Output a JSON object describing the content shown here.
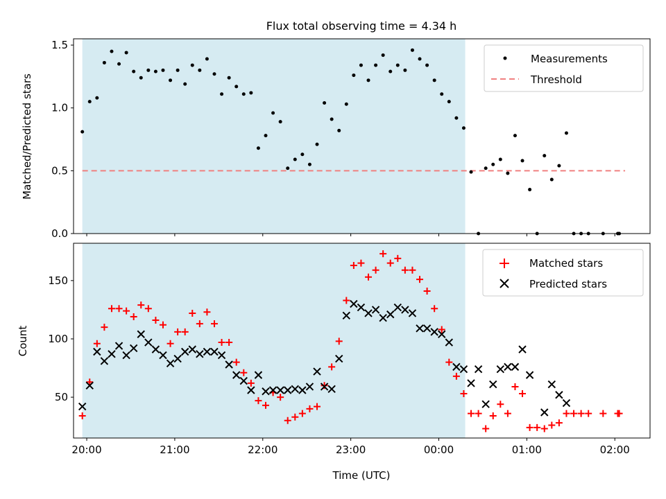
{
  "figure_title": "Flux total observing time = 4.34 h",
  "colors": {
    "shade": "#add8e6",
    "threshold": "#f08080",
    "matched": "#ff0000",
    "predicted": "#000000",
    "measurement": "#000000"
  },
  "chart_data": [
    {
      "type": "scatter",
      "ylabel": "Matched/Predicted stars",
      "xlabel": "",
      "xlim": [
        "19:51",
        "02:24"
      ],
      "ylim": [
        0,
        1.55
      ],
      "y_ticks": [
        "0.0",
        "0.5",
        "1.0",
        "1.5"
      ],
      "observing_window": [
        "19:57",
        "00:18"
      ],
      "legend_position": "upper right",
      "legend": [
        "Measurements",
        "Threshold"
      ],
      "threshold": {
        "name": "Threshold",
        "y": 0.5,
        "x_range": [
          "19:57",
          "02:07"
        ]
      },
      "series": [
        {
          "name": "Measurements",
          "marker": "dot",
          "points": [
            [
              "19:57",
              0.81
            ],
            [
              "20:02",
              1.05
            ],
            [
              "20:07",
              1.08
            ],
            [
              "20:12",
              1.36
            ],
            [
              "20:17",
              1.45
            ],
            [
              "20:22",
              1.35
            ],
            [
              "20:27",
              1.44
            ],
            [
              "20:32",
              1.29
            ],
            [
              "20:37",
              1.24
            ],
            [
              "20:42",
              1.3
            ],
            [
              "20:47",
              1.29
            ],
            [
              "20:52",
              1.3
            ],
            [
              "20:57",
              1.22
            ],
            [
              "21:02",
              1.3
            ],
            [
              "21:07",
              1.19
            ],
            [
              "21:12",
              1.34
            ],
            [
              "21:17",
              1.3
            ],
            [
              "21:22",
              1.39
            ],
            [
              "21:27",
              1.27
            ],
            [
              "21:32",
              1.11
            ],
            [
              "21:37",
              1.24
            ],
            [
              "21:42",
              1.17
            ],
            [
              "21:47",
              1.11
            ],
            [
              "21:52",
              1.12
            ],
            [
              "21:57",
              0.68
            ],
            [
              "22:02",
              0.78
            ],
            [
              "22:07",
              0.96
            ],
            [
              "22:12",
              0.89
            ],
            [
              "22:17",
              0.52
            ],
            [
              "22:22",
              0.59
            ],
            [
              "22:27",
              0.63
            ],
            [
              "22:32",
              0.55
            ],
            [
              "22:37",
              0.71
            ],
            [
              "22:42",
              1.04
            ],
            [
              "22:47",
              0.91
            ],
            [
              "22:52",
              0.82
            ],
            [
              "22:57",
              1.03
            ],
            [
              "23:02",
              1.26
            ],
            [
              "23:07",
              1.34
            ],
            [
              "23:12",
              1.22
            ],
            [
              "23:17",
              1.34
            ],
            [
              "23:22",
              1.42
            ],
            [
              "23:27",
              1.29
            ],
            [
              "23:32",
              1.34
            ],
            [
              "23:37",
              1.3
            ],
            [
              "23:42",
              1.46
            ],
            [
              "23:47",
              1.39
            ],
            [
              "23:52",
              1.34
            ],
            [
              "23:57",
              1.22
            ],
            [
              "00:02",
              1.11
            ],
            [
              "00:07",
              1.05
            ],
            [
              "00:12",
              0.92
            ],
            [
              "00:17",
              0.84
            ],
            [
              "00:22",
              0.49
            ],
            [
              "00:27",
              0.0
            ],
            [
              "00:32",
              0.52
            ],
            [
              "00:37",
              0.55
            ],
            [
              "00:42",
              0.59
            ],
            [
              "00:47",
              0.48
            ],
            [
              "00:52",
              0.78
            ],
            [
              "00:57",
              0.58
            ],
            [
              "01:02",
              0.35
            ],
            [
              "01:07",
              0.0
            ],
            [
              "01:12",
              0.62
            ],
            [
              "01:17",
              0.43
            ],
            [
              "01:22",
              0.54
            ],
            [
              "01:27",
              0.8
            ],
            [
              "01:32",
              0.0
            ],
            [
              "01:37",
              0.0
            ],
            [
              "01:42",
              0.0
            ],
            [
              "01:52",
              0.0
            ],
            [
              "02:02",
              0.0
            ],
            [
              "02:03",
              0.0
            ]
          ]
        }
      ]
    },
    {
      "type": "scatter",
      "ylabel": "Count",
      "xlabel": "Time (UTC)",
      "xlim": [
        "19:51",
        "02:24"
      ],
      "ylim": [
        15,
        182
      ],
      "y_ticks": [
        "50",
        "100",
        "150"
      ],
      "x_ticks": [
        "20:00",
        "21:00",
        "22:00",
        "23:00",
        "00:00",
        "01:00",
        "02:00"
      ],
      "observing_window": [
        "19:57",
        "00:18"
      ],
      "legend_position": "upper right",
      "legend": [
        "Matched stars",
        "Predicted stars"
      ],
      "series": [
        {
          "name": "Matched stars",
          "marker": "plus",
          "points": [
            [
              "19:57",
              34
            ],
            [
              "20:02",
              63
            ],
            [
              "20:07",
              96
            ],
            [
              "20:12",
              110
            ],
            [
              "20:17",
              126
            ],
            [
              "20:22",
              126
            ],
            [
              "20:27",
              124
            ],
            [
              "20:32",
              119
            ],
            [
              "20:37",
              129
            ],
            [
              "20:42",
              126
            ],
            [
              "20:47",
              116
            ],
            [
              "20:52",
              112
            ],
            [
              "20:57",
              96
            ],
            [
              "21:02",
              106
            ],
            [
              "21:07",
              106
            ],
            [
              "21:12",
              122
            ],
            [
              "21:17",
              113
            ],
            [
              "21:22",
              123
            ],
            [
              "21:27",
              113
            ],
            [
              "21:32",
              97
            ],
            [
              "21:37",
              97
            ],
            [
              "21:42",
              80
            ],
            [
              "21:47",
              71
            ],
            [
              "21:52",
              62
            ],
            [
              "21:57",
              47
            ],
            [
              "22:02",
              43
            ],
            [
              "22:07",
              54
            ],
            [
              "22:12",
              50
            ],
            [
              "22:17",
              30
            ],
            [
              "22:22",
              33
            ],
            [
              "22:27",
              36
            ],
            [
              "22:32",
              40
            ],
            [
              "22:37",
              42
            ],
            [
              "22:42",
              60
            ],
            [
              "22:47",
              76
            ],
            [
              "22:52",
              98
            ],
            [
              "22:57",
              133
            ],
            [
              "23:02",
              163
            ],
            [
              "23:07",
              165
            ],
            [
              "23:12",
              153
            ],
            [
              "23:17",
              159
            ],
            [
              "23:22",
              173
            ],
            [
              "23:27",
              165
            ],
            [
              "23:32",
              169
            ],
            [
              "23:37",
              159
            ],
            [
              "23:42",
              159
            ],
            [
              "23:47",
              151
            ],
            [
              "23:52",
              141
            ],
            [
              "23:57",
              126
            ],
            [
              "00:02",
              108
            ],
            [
              "00:07",
              80
            ],
            [
              "00:12",
              68
            ],
            [
              "00:17",
              53
            ],
            [
              "00:22",
              36
            ],
            [
              "00:27",
              36
            ],
            [
              "00:32",
              23
            ],
            [
              "00:37",
              34
            ],
            [
              "00:42",
              44
            ],
            [
              "00:47",
              36
            ],
            [
              "00:52",
              59
            ],
            [
              "00:57",
              53
            ],
            [
              "01:02",
              24
            ],
            [
              "01:07",
              24
            ],
            [
              "01:12",
              23
            ],
            [
              "01:17",
              26
            ],
            [
              "01:22",
              28
            ],
            [
              "01:27",
              36
            ],
            [
              "01:32",
              36
            ],
            [
              "01:37",
              36
            ],
            [
              "01:42",
              36
            ],
            [
              "01:52",
              36
            ],
            [
              "02:02",
              36
            ],
            [
              "02:03",
              36
            ]
          ]
        },
        {
          "name": "Predicted stars",
          "marker": "x",
          "points": [
            [
              "19:57",
              42
            ],
            [
              "20:02",
              60
            ],
            [
              "20:07",
              89
            ],
            [
              "20:12",
              81
            ],
            [
              "20:17",
              87
            ],
            [
              "20:22",
              94
            ],
            [
              "20:27",
              86
            ],
            [
              "20:32",
              92
            ],
            [
              "20:37",
              104
            ],
            [
              "20:42",
              97
            ],
            [
              "20:47",
              91
            ],
            [
              "20:52",
              86
            ],
            [
              "20:57",
              79
            ],
            [
              "21:02",
              83
            ],
            [
              "21:07",
              89
            ],
            [
              "21:12",
              91
            ],
            [
              "21:17",
              87
            ],
            [
              "21:22",
              89
            ],
            [
              "21:27",
              89
            ],
            [
              "21:32",
              86
            ],
            [
              "21:37",
              78
            ],
            [
              "21:42",
              69
            ],
            [
              "21:47",
              64
            ],
            [
              "21:52",
              56
            ],
            [
              "21:57",
              69
            ],
            [
              "22:02",
              55
            ],
            [
              "22:07",
              56
            ],
            [
              "22:12",
              56
            ],
            [
              "22:17",
              56
            ],
            [
              "22:22",
              57
            ],
            [
              "22:27",
              56
            ],
            [
              "22:32",
              59
            ],
            [
              "22:37",
              72
            ],
            [
              "22:42",
              59
            ],
            [
              "22:47",
              57
            ],
            [
              "22:52",
              83
            ],
            [
              "22:57",
              120
            ],
            [
              "23:02",
              130
            ],
            [
              "23:07",
              127
            ],
            [
              "23:12",
              122
            ],
            [
              "23:17",
              125
            ],
            [
              "23:22",
              118
            ],
            [
              "23:27",
              121
            ],
            [
              "23:32",
              127
            ],
            [
              "23:37",
              125
            ],
            [
              "23:42",
              122
            ],
            [
              "23:47",
              109
            ],
            [
              "23:52",
              109
            ],
            [
              "23:57",
              106
            ],
            [
              "00:02",
              104
            ],
            [
              "00:07",
              97
            ],
            [
              "00:12",
              76
            ],
            [
              "00:17",
              74
            ],
            [
              "00:22",
              62
            ],
            [
              "00:27",
              74
            ],
            [
              "00:32",
              44
            ],
            [
              "00:37",
              61
            ],
            [
              "00:42",
              74
            ],
            [
              "00:47",
              76
            ],
            [
              "00:52",
              76
            ],
            [
              "00:57",
              91
            ],
            [
              "01:02",
              69
            ],
            [
              "01:12",
              37
            ],
            [
              "01:17",
              61
            ],
            [
              "01:22",
              52
            ],
            [
              "01:27",
              45
            ]
          ]
        }
      ]
    }
  ]
}
